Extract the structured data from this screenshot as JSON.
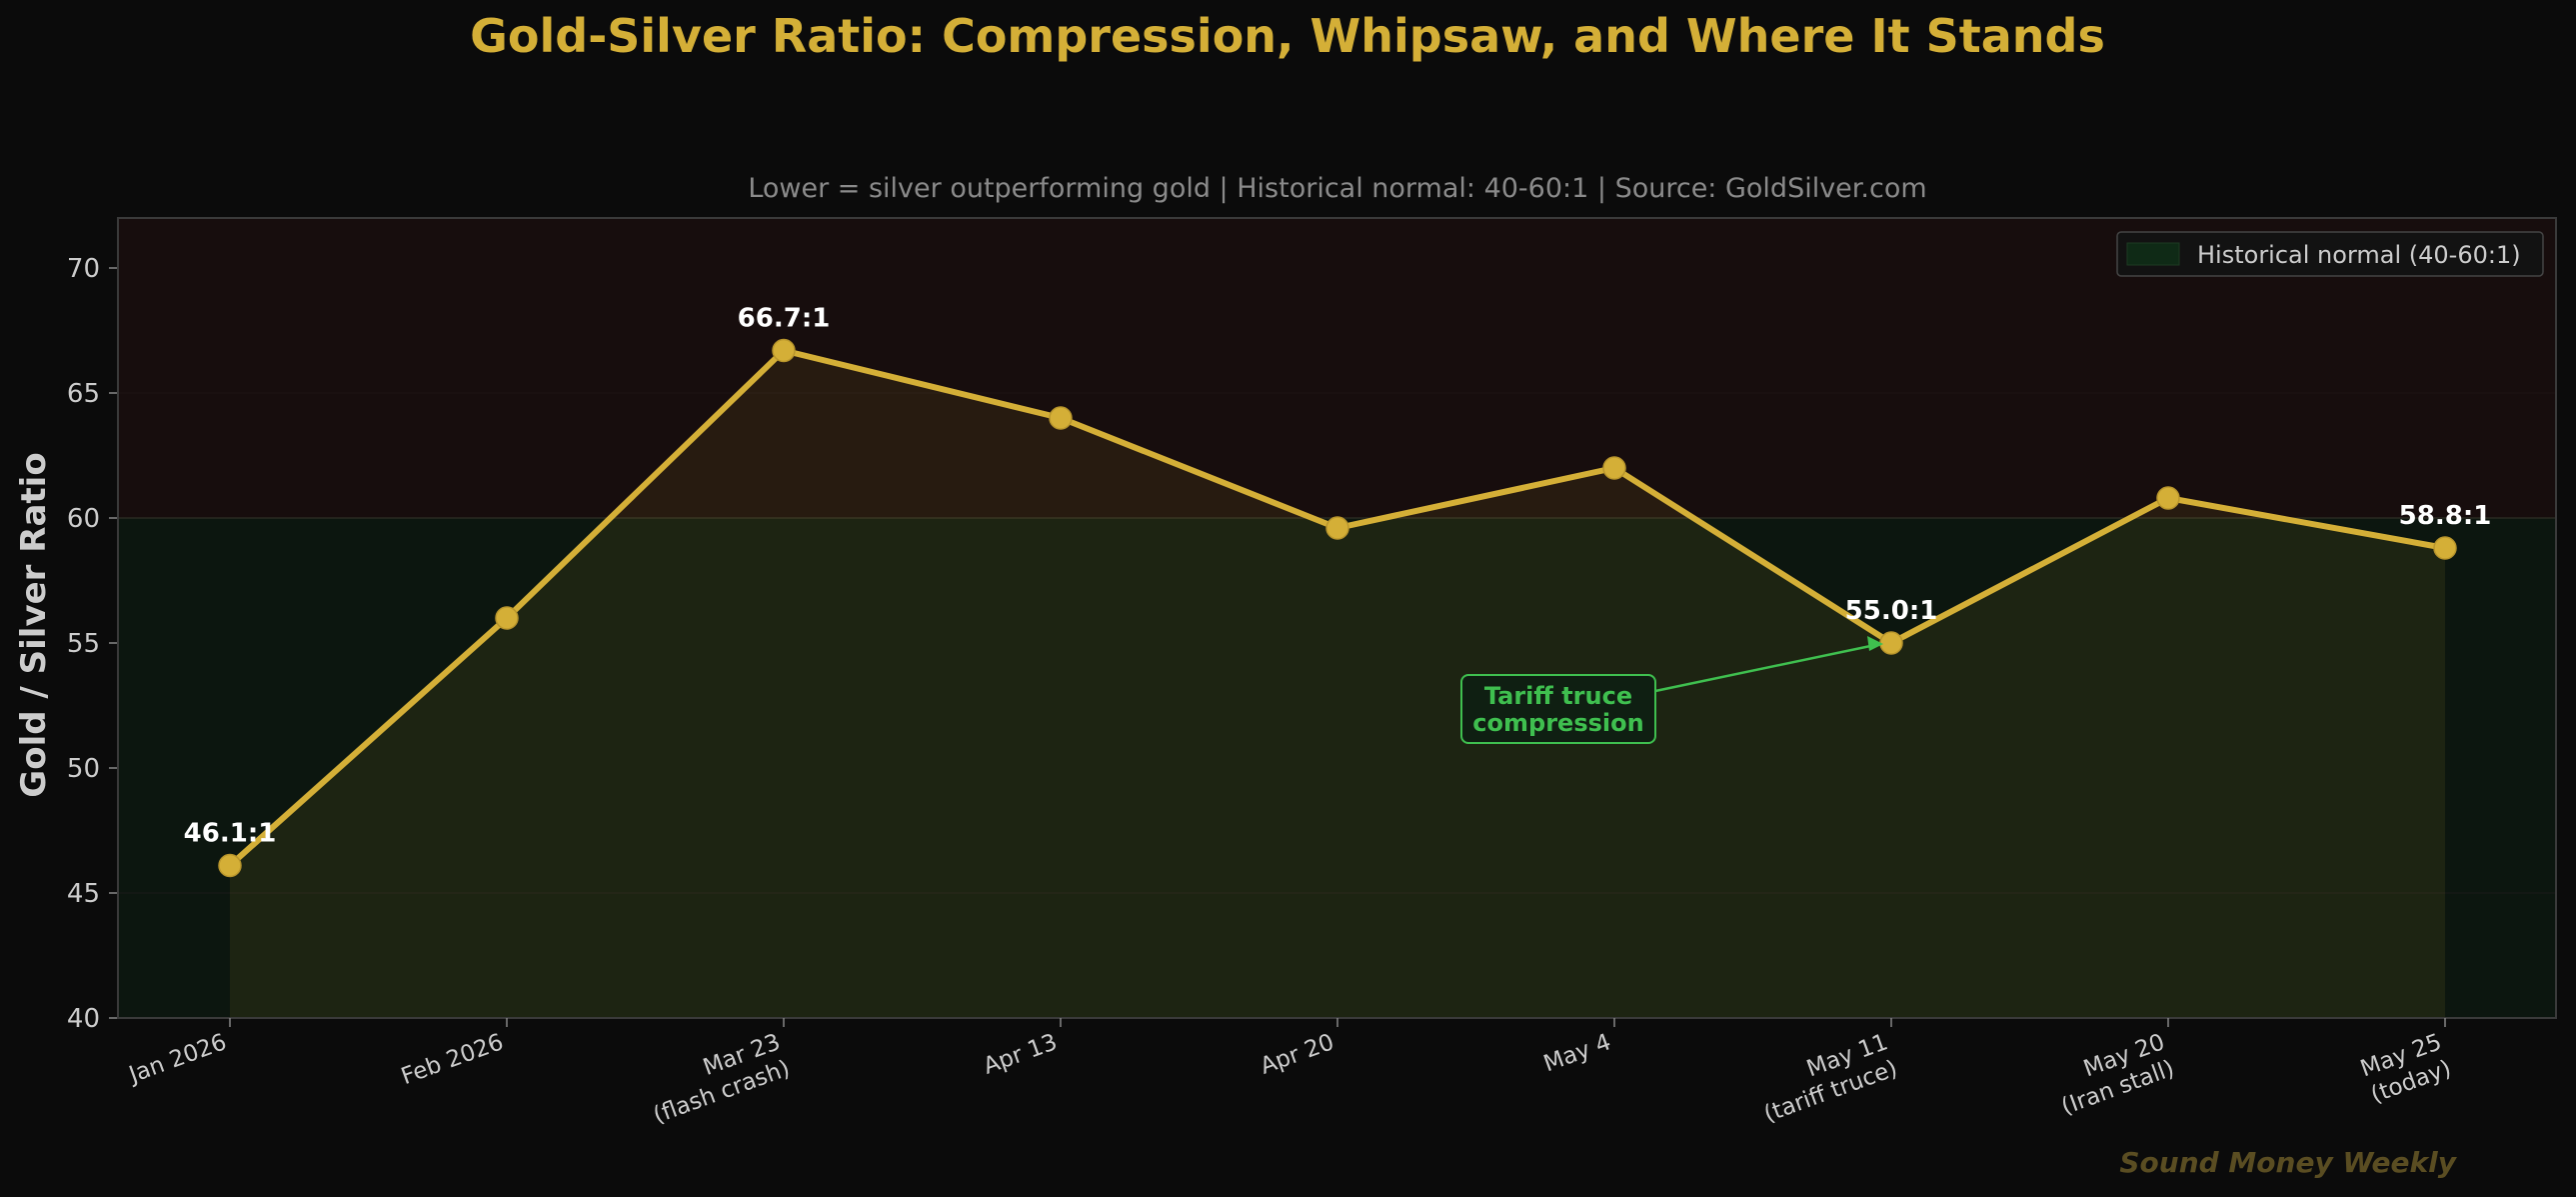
{
  "colors": {
    "background": "#0b0b0b",
    "gold": "#d4af37",
    "green": "#3fbf4f",
    "text": "#cccccc",
    "muted": "#8a8a8a",
    "white": "#ffffff",
    "watermark": "#5a4d22"
  },
  "chart_data": {
    "type": "line",
    "title": "Gold-Silver Ratio: Compression, Whipsaw, and Where It Stands",
    "subtitle": "Lower = silver outperforming gold  |  Historical normal: 40-60:1  |  Source: GoldSilver.com",
    "xlabel": "",
    "ylabel": "Gold / Silver Ratio",
    "ylim": [
      40,
      72
    ],
    "yticks": [
      "40",
      "45",
      "50",
      "55",
      "60",
      "65",
      "70"
    ],
    "ytick_values": [
      40,
      45,
      50,
      55,
      60,
      65,
      70
    ],
    "grid": false,
    "legend_position": "top-right",
    "legend": [
      "Historical normal (40-60:1)"
    ],
    "normal_band": [
      40,
      60
    ],
    "categories": [
      [
        "Jan 2026"
      ],
      [
        "Feb 2026"
      ],
      [
        "Mar 23",
        "(flash crash)"
      ],
      [
        "Apr 13"
      ],
      [
        "Apr 20"
      ],
      [
        "May 4"
      ],
      [
        "May 11",
        "(tariff truce)"
      ],
      [
        "May 20",
        "(Iran stall)"
      ],
      [
        "May 25",
        "(today)"
      ]
    ],
    "series": [
      {
        "values": [
          46.1,
          56.0,
          66.7,
          64.0,
          59.6,
          62.0,
          55.0,
          60.8,
          58.8
        ]
      }
    ],
    "data_labels": [
      {
        "index": 0,
        "text": "46.1:1"
      },
      {
        "index": 2,
        "text": "66.7:1"
      },
      {
        "index": 6,
        "text": "55.0:1"
      },
      {
        "index": 8,
        "text": "58.8:1"
      }
    ],
    "annotation": {
      "lines": [
        "Tariff truce",
        "compression"
      ],
      "target_index": 6
    },
    "watermark": "Sound Money Weekly"
  }
}
